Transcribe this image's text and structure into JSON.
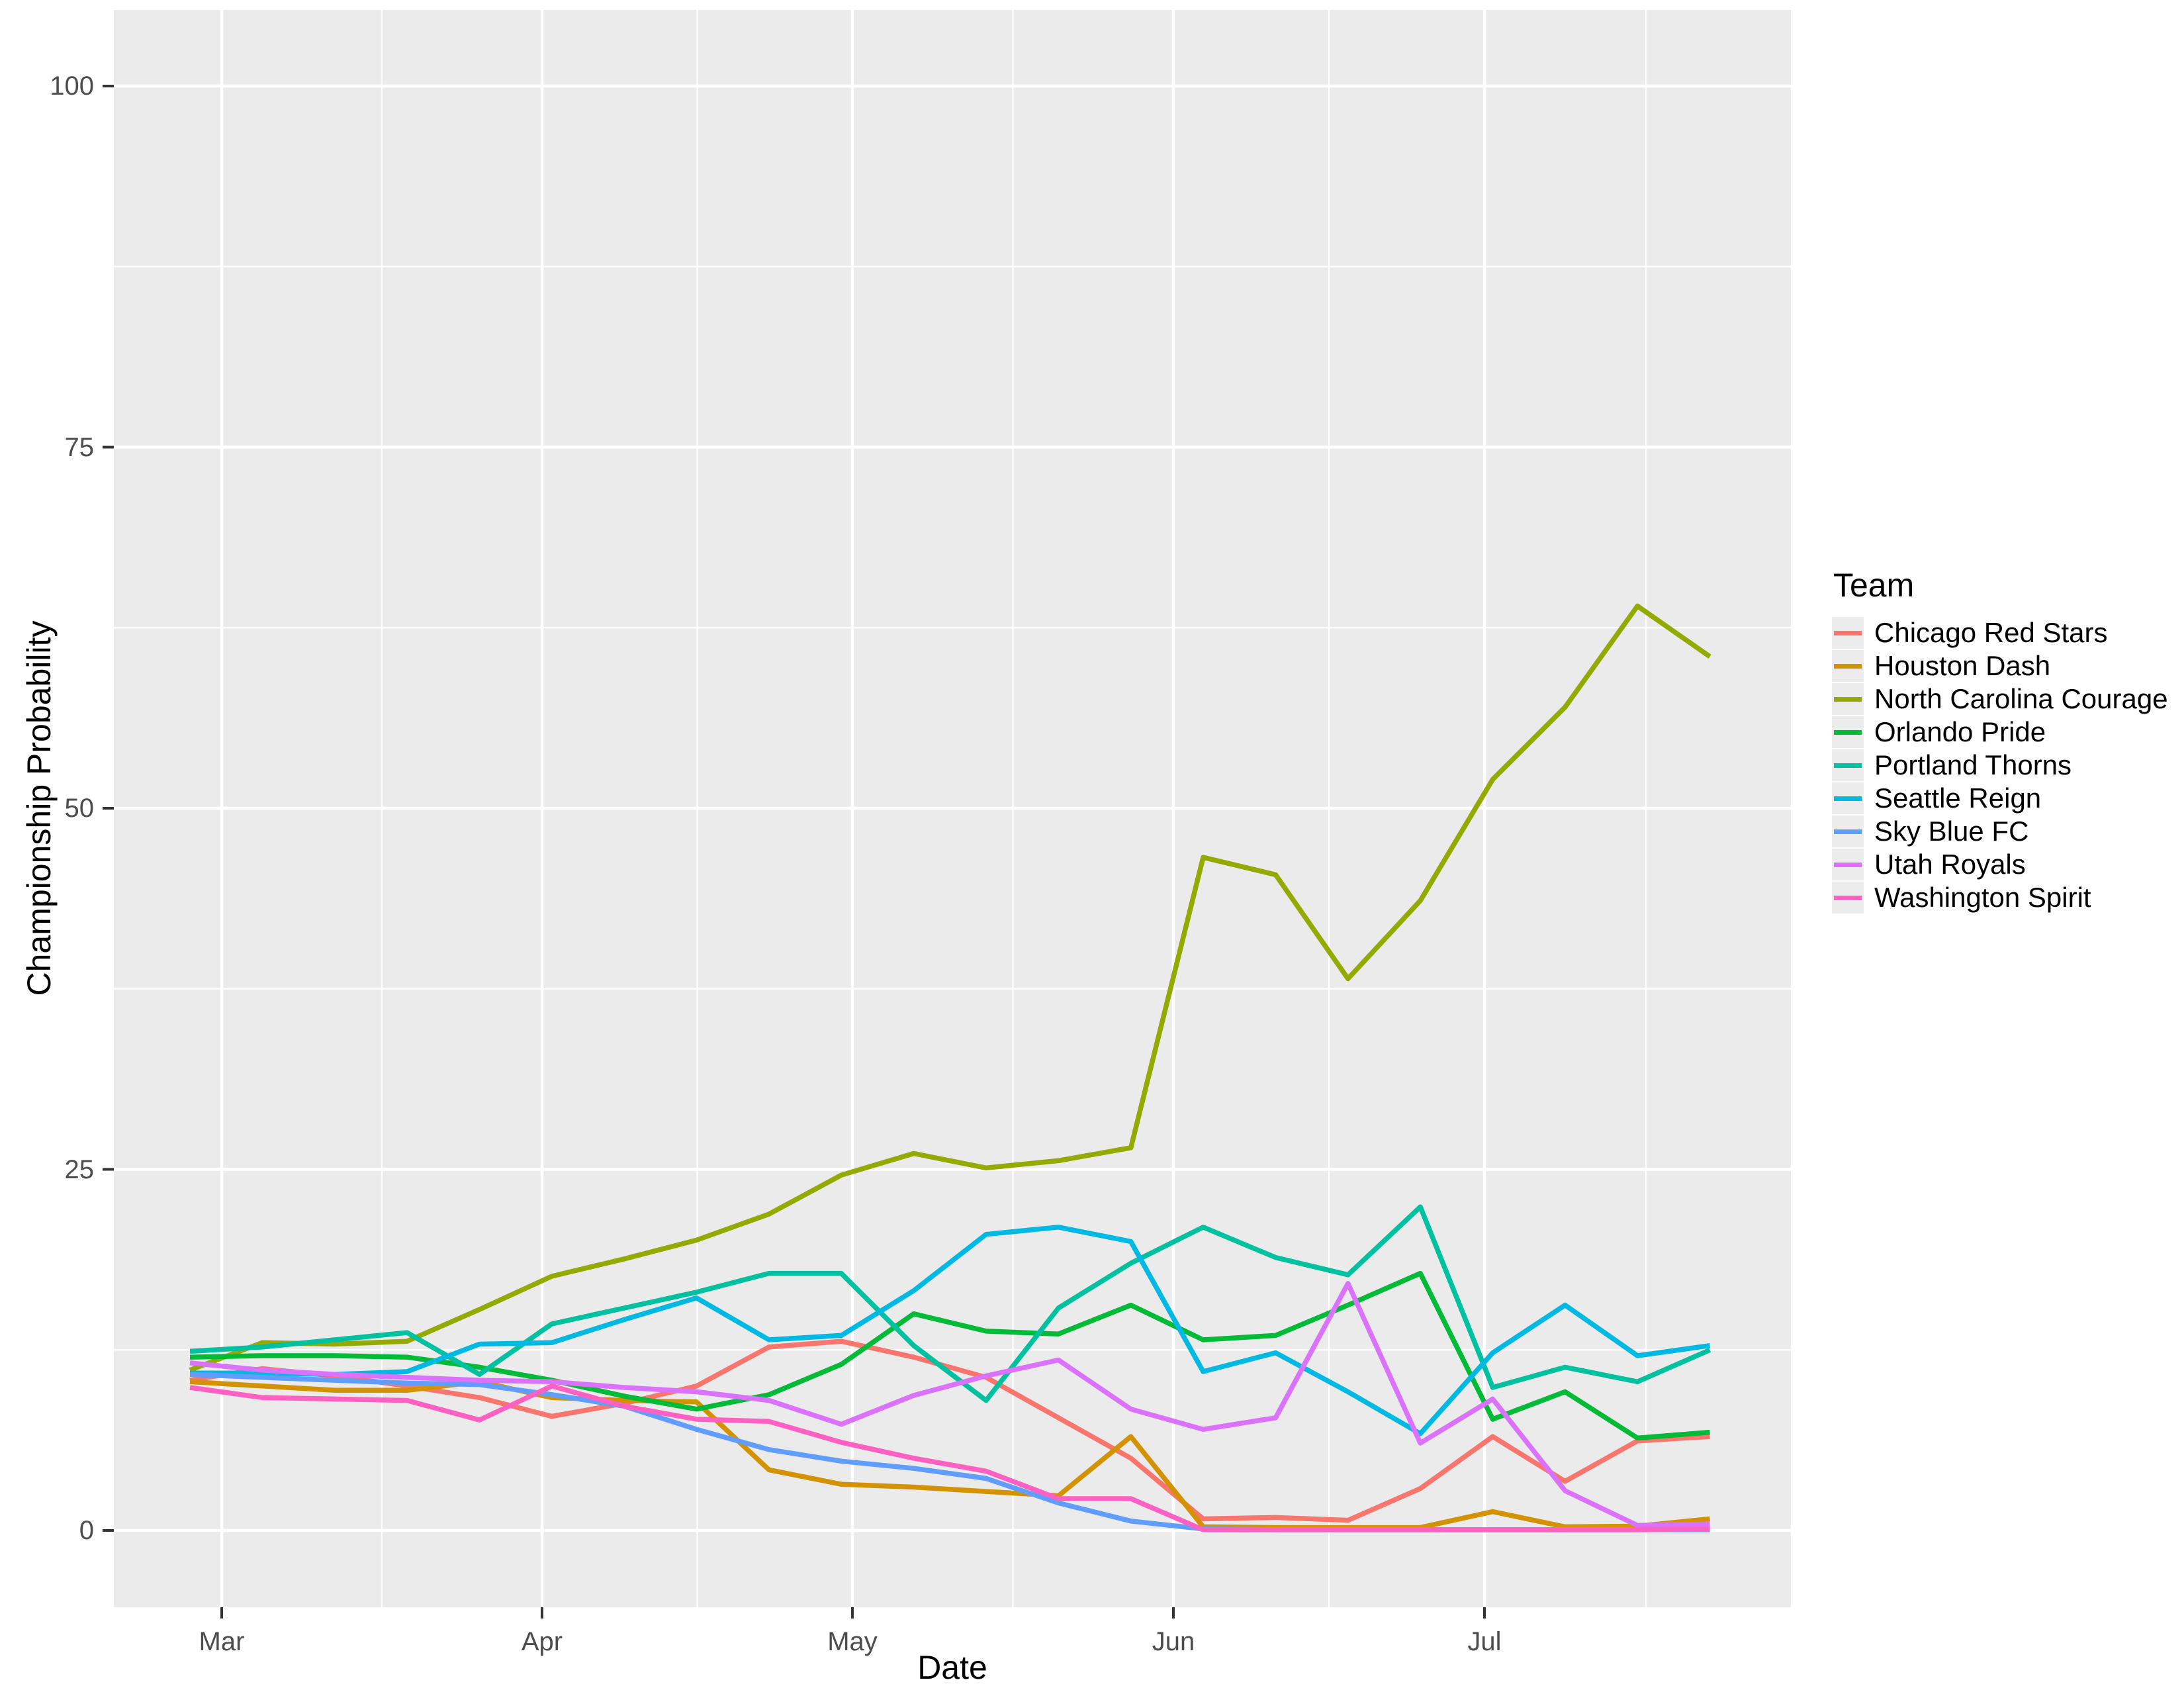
{
  "chart_data": {
    "type": "line",
    "title": "",
    "xlabel": "Date",
    "ylabel": "Championship Probability",
    "x_tick_labels": [
      "Mar",
      "Apr",
      "May",
      "Jun",
      "Jul"
    ],
    "y_tick_labels": [
      "0",
      "25",
      "50",
      "75",
      "100"
    ],
    "y_tick_values": [
      0,
      25,
      50,
      75,
      100
    ],
    "ylim": [
      0,
      100
    ],
    "grid": "on",
    "panel_background": "#ebebeb",
    "gridline_color": "#ffffff",
    "legend_position": "right",
    "legend_title": "Team",
    "x": [
      "Feb 26",
      "Mar 5",
      "Mar 12",
      "Mar 19",
      "Mar 26",
      "Apr 2",
      "Apr 9",
      "Apr 16",
      "Apr 23",
      "Apr 30",
      "May 7",
      "May 14",
      "May 21",
      "May 28",
      "Jun 4",
      "Jun 11",
      "Jun 18",
      "Jun 25",
      "Jul 2",
      "Jul 9",
      "Jul 16",
      "Jul 23"
    ],
    "series": [
      {
        "name": "Chicago Red Stars",
        "color": "#F8766D",
        "values": [
          10.4,
          11.2,
          10.7,
          10.0,
          9.2,
          7.9,
          8.8,
          10.0,
          12.7,
          13.1,
          12.0,
          10.6,
          7.8,
          5.0,
          0.8,
          0.9,
          0.7,
          2.9,
          6.5,
          3.4,
          6.2,
          6.5
        ]
      },
      {
        "name": "Houston Dash",
        "color": "#D39200",
        "values": [
          10.3,
          10.0,
          9.7,
          9.7,
          10.3,
          9.2,
          9.0,
          8.9,
          4.2,
          3.2,
          3.0,
          2.7,
          2.4,
          6.5,
          0.25,
          0.2,
          0.2,
          0.2,
          1.3,
          0.25,
          0.3,
          0.8
        ]
      },
      {
        "name": "North Carolina Courage",
        "color": "#93AA00",
        "values": [
          11.1,
          13.0,
          12.9,
          13.1,
          15.3,
          17.6,
          18.8,
          20.1,
          21.9,
          24.6,
          26.1,
          25.1,
          25.6,
          26.5,
          46.6,
          45.4,
          38.2,
          43.6,
          52.0,
          57.0,
          64.0,
          60.5
        ]
      },
      {
        "name": "Orlando Pride",
        "color": "#00BA38",
        "values": [
          12.0,
          12.1,
          12.1,
          12.0,
          11.3,
          10.4,
          9.3,
          8.4,
          9.4,
          11.5,
          15.0,
          13.8,
          13.6,
          15.6,
          13.2,
          13.5,
          15.6,
          17.8,
          7.7,
          9.6,
          6.4,
          6.8
        ]
      },
      {
        "name": "Portland Thorns",
        "color": "#00C19F",
        "values": [
          12.4,
          12.7,
          13.2,
          13.7,
          10.8,
          14.3,
          15.4,
          16.5,
          17.8,
          17.8,
          12.8,
          9.0,
          15.4,
          18.5,
          21.0,
          18.9,
          17.7,
          22.4,
          9.9,
          11.3,
          10.3,
          12.5
        ]
      },
      {
        "name": "Seattle Reign",
        "color": "#00B9E3",
        "values": [
          10.9,
          10.9,
          10.8,
          11.0,
          12.9,
          13.0,
          14.6,
          16.1,
          13.2,
          13.5,
          16.6,
          20.5,
          21.0,
          20.0,
          11.0,
          12.3,
          9.6,
          6.7,
          12.3,
          15.6,
          12.1,
          12.8
        ]
      },
      {
        "name": "Sky Blue FC",
        "color": "#619CFF",
        "values": [
          10.8,
          10.6,
          10.4,
          10.2,
          10.1,
          9.4,
          8.6,
          7.0,
          5.6,
          4.8,
          4.3,
          3.6,
          1.9,
          0.65,
          0.1,
          0.05,
          0.05,
          0.05,
          0.05,
          0.05,
          0.05,
          0.05
        ]
      },
      {
        "name": "Utah Royals",
        "color": "#DB72FB",
        "values": [
          11.6,
          11.1,
          10.8,
          10.6,
          10.4,
          10.3,
          9.9,
          9.6,
          9.0,
          7.35,
          9.35,
          10.7,
          11.8,
          8.4,
          7.0,
          7.8,
          17.1,
          6.05,
          9.1,
          2.75,
          0.35,
          0.45
        ]
      },
      {
        "name": "Washington Spirit",
        "color": "#FF61C3",
        "values": [
          9.9,
          9.2,
          9.1,
          9.0,
          7.65,
          10.0,
          8.6,
          7.7,
          7.55,
          6.1,
          5.0,
          4.1,
          2.2,
          2.2,
          0.05,
          0.05,
          0.05,
          0.05,
          0.05,
          0.05,
          0.05,
          0.1
        ]
      }
    ]
  }
}
